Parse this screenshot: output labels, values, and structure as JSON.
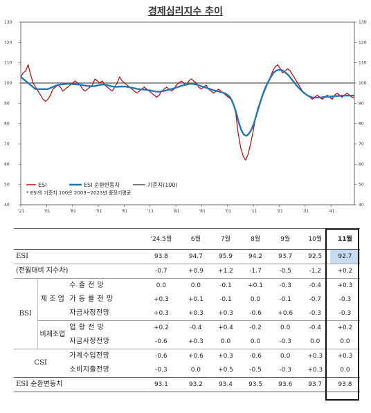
{
  "title": "경제심리지수 추이",
  "chart_data": {
    "type": "line",
    "ylim": [
      40,
      130
    ],
    "yticks": [
      40,
      50,
      60,
      70,
      80,
      90,
      100,
      110,
      120,
      130
    ],
    "xtick_labels": [
      "'21",
      "'01",
      "'81",
      "'51",
      "'61",
      "'11",
      "'81",
      "'91",
      "'01",
      "'11",
      "'21",
      "'31",
      "'41"
    ],
    "baseline": 100,
    "legend": [
      "ESI",
      "ESI 순환변동치",
      "기준치(100)"
    ],
    "note": "* ESI의 기준치 100은 2003~2023년 중장기평균",
    "colors": {
      "esi": "#c00000",
      "cycle": "#1f77b4",
      "base": "#555555"
    },
    "series": [
      {
        "name": "ESI",
        "values": [
          103,
          105,
          106,
          109,
          104,
          100,
          98,
          96,
          94,
          92,
          91,
          92,
          94,
          97,
          98,
          99,
          98,
          96,
          97,
          98,
          99,
          100,
          101,
          100,
          99,
          97,
          96,
          97,
          98,
          99,
          102,
          101,
          100,
          101,
          99,
          98,
          97,
          96,
          98,
          100,
          103,
          101,
          100,
          99,
          98,
          97,
          96,
          95,
          96,
          97,
          98,
          97,
          96,
          95,
          94,
          93,
          94,
          96,
          97,
          98,
          97,
          96,
          97,
          99,
          100,
          101,
          100,
          99,
          101,
          102,
          101,
          100,
          98,
          97,
          98,
          99,
          97,
          96,
          95,
          96,
          97,
          96,
          95,
          94,
          93,
          92,
          90,
          85,
          75,
          68,
          64,
          62,
          65,
          70,
          76,
          83,
          88,
          91,
          94,
          97,
          100,
          103,
          106,
          108,
          109,
          107,
          105,
          106,
          107,
          106,
          104,
          102,
          100,
          98,
          96,
          95,
          94,
          93,
          92,
          93,
          94,
          93,
          92,
          93,
          94,
          93,
          92,
          94,
          95,
          94,
          93,
          94,
          95,
          94,
          93,
          92.7
        ]
      },
      {
        "name": "ESI 순환변동치",
        "values": [
          103,
          102,
          101,
          100,
          99,
          98,
          97,
          97,
          97,
          97,
          97,
          97,
          97.5,
          98,
          98.5,
          99,
          99.2,
          99.4,
          99.5,
          99.6,
          99.6,
          99.5,
          99.4,
          99.3,
          99.2,
          99,
          98.8,
          98.6,
          98.5,
          98.4,
          98.5,
          98.7,
          99,
          99.2,
          99.2,
          99,
          98.7,
          98.4,
          98.2,
          98.1,
          98.2,
          98.3,
          98.3,
          98.2,
          98,
          97.8,
          97.5,
          97.2,
          97,
          96.9,
          96.8,
          96.7,
          96.5,
          96.3,
          96,
          95.8,
          95.7,
          95.8,
          96,
          96.3,
          96.6,
          96.9,
          97.2,
          97.6,
          98,
          98.4,
          98.8,
          99.1,
          99.4,
          99.6,
          99.6,
          99.4,
          99.1,
          98.7,
          98.3,
          97.9,
          97.5,
          97.1,
          96.7,
          96.3,
          96,
          95.7,
          95.4,
          95,
          94.4,
          93.4,
          91.5,
          88.5,
          84.5,
          80,
          76.5,
          74.5,
          74,
          75,
          77,
          80,
          84,
          88,
          92,
          95.5,
          98.5,
          101,
          103,
          105,
          106,
          106.5,
          106.5,
          106,
          105,
          104,
          102.5,
          101,
          99.5,
          98,
          96.8,
          95.6,
          94.6,
          93.8,
          93.2,
          92.9,
          92.8,
          92.8,
          92.9,
          93,
          93.1,
          93.2,
          93.3,
          93.4,
          93.5,
          93.6,
          93.7,
          93.8,
          93.8,
          93.8,
          93.8,
          93.8,
          93.8
        ]
      }
    ]
  },
  "table": {
    "headers": [
      "'24.5월",
      "6월",
      "7월",
      "8월",
      "9월",
      "10월",
      "11월"
    ],
    "rows": {
      "esi": {
        "label": "ESI",
        "values": [
          "93.8",
          "94.7",
          "95.9",
          "94.2",
          "93.7",
          "92.5",
          "92.7"
        ]
      },
      "esi_chg": {
        "label": "(전월대비 지수차)",
        "values": [
          "-0.7",
          "+0.9",
          "+1.2",
          "-1.7",
          "-0.5",
          "-1.2",
          "+0.2"
        ]
      },
      "bsi_label": "BSI",
      "mfg_label": "제 조 업",
      "nonmfg_label": "비제조업",
      "mfg1": {
        "label": "수 출 전 망",
        "values": [
          "0.0",
          "0.0",
          "-0.1",
          "+0.1",
          "-0.3",
          "-0.4",
          "+0.3"
        ]
      },
      "mfg2": {
        "label": "가 동 률 전 망",
        "values": [
          "+0.3",
          "+0.1",
          "-0.1",
          "0.0",
          "-0.1",
          "-0.7",
          "-0.3"
        ]
      },
      "mfg3": {
        "label": "자금사정전망",
        "values": [
          "+0.3",
          "+0.3",
          "+0.3",
          "-0.6",
          "+0.6",
          "-0.3",
          "-0.3"
        ]
      },
      "non1": {
        "label": "업 황 전 망",
        "values": [
          "+0.2",
          "-0.4",
          "+0.4",
          "-0.2",
          "0.0",
          "-0.4",
          "+0.2"
        ]
      },
      "non2": {
        "label": "자금사정전망",
        "values": [
          "-0.6",
          "+0.3",
          "0.0",
          "0.0",
          "-0.3",
          "0.0",
          "0.0"
        ]
      },
      "csi_label": "CSI",
      "csi1": {
        "label": "가계수입전망",
        "values": [
          "-0.6",
          "+0.6",
          "+0.3",
          "-0.6",
          "0.0",
          "+0.3",
          "+0.3"
        ]
      },
      "csi2": {
        "label": "소비지출전망",
        "values": [
          "-0.3",
          "0.0",
          "+0.5",
          "-0.5",
          "-0.3",
          "+0.3",
          "0.0"
        ]
      },
      "cycle": {
        "label": "ESI 순환변동치",
        "values": [
          "93.1",
          "93.2",
          "93.4",
          "93.5",
          "93.6",
          "93.7",
          "93.8"
        ]
      }
    }
  }
}
